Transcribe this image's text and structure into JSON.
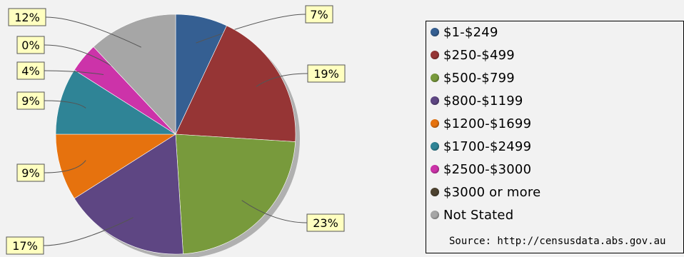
{
  "chart_data": {
    "type": "pie",
    "slices": [
      {
        "label": "$1-$249",
        "value": 7,
        "color": "#355f92",
        "display": "7%"
      },
      {
        "label": "$250-$499",
        "value": 19,
        "color": "#963535",
        "display": "19%"
      },
      {
        "label": "$500-$799",
        "value": 23,
        "color": "#789a3c",
        "display": "23%"
      },
      {
        "label": "$800-$1199",
        "value": 17,
        "color": "#5e4683",
        "display": "17%"
      },
      {
        "label": "$1200-$1699",
        "value": 9,
        "color": "#e6720e",
        "display": "9%"
      },
      {
        "label": "$1700-$2499",
        "value": 9,
        "color": "#2f8496",
        "display": "9%"
      },
      {
        "label": "$2500-$3000",
        "value": 4,
        "color": "#cc33a9",
        "display": "4%"
      },
      {
        "label": "$3000 or more",
        "value": 0,
        "color": "#4e4331",
        "display": "0%"
      },
      {
        "label": "Not Stated",
        "value": 12,
        "color": "#a6a6a6",
        "display": "12%"
      }
    ],
    "legend_position": "right",
    "source": "Source: http://censusdata.abs.gov.au"
  }
}
